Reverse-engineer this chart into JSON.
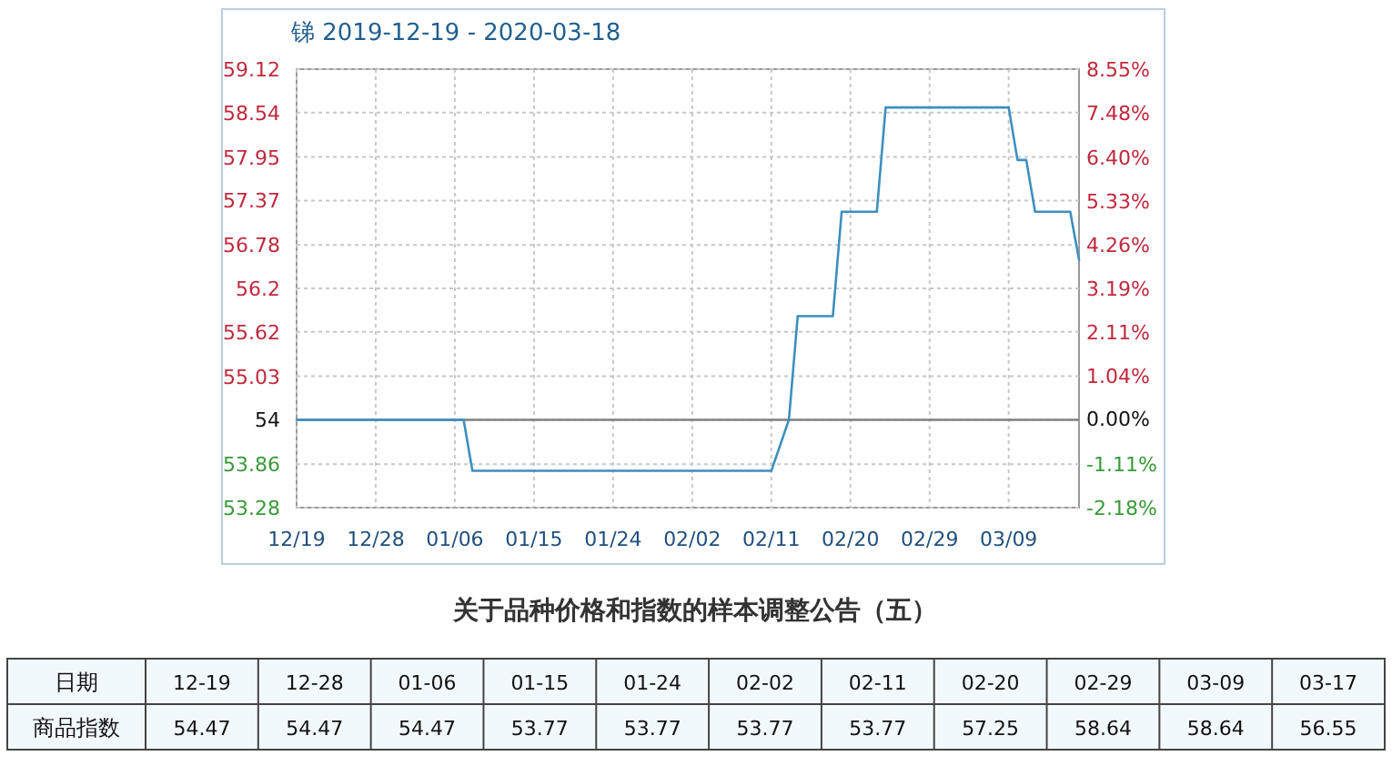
{
  "chart_data": [
    {
      "type": "line",
      "title": "锑 2019-12-19 - 2020-03-18",
      "x": [
        "2019-12-19",
        "2020-01-07",
        "2020-01-08",
        "2020-02-11",
        "2020-02-13",
        "2020-02-14",
        "2020-02-18",
        "2020-02-19",
        "2020-02-23",
        "2020-02-24",
        "2020-03-09",
        "2020-03-10",
        "2020-03-11",
        "2020-03-12",
        "2020-03-16",
        "2020-03-17"
      ],
      "series": [
        {
          "color": "#3d8fbf",
          "values": [
            54.45,
            54.45,
            53.77,
            53.77,
            54.45,
            55.83,
            55.83,
            57.22,
            57.22,
            58.61,
            58.61,
            57.91,
            57.91,
            57.22,
            57.22,
            56.58
          ]
        }
      ],
      "xlim": [
        "2019-12-19",
        "2020-03-17"
      ],
      "xticks": [
        {
          "value": "2019-12-19",
          "label": "12/19"
        },
        {
          "value": "2019-12-28",
          "label": "12/28"
        },
        {
          "value": "2020-01-06",
          "label": "01/06"
        },
        {
          "value": "2020-01-15",
          "label": "01/15"
        },
        {
          "value": "2020-01-24",
          "label": "01/24"
        },
        {
          "value": "2020-02-02",
          "label": "02/02"
        },
        {
          "value": "2020-02-11",
          "label": "02/11"
        },
        {
          "value": "2020-02-20",
          "label": "02/20"
        },
        {
          "value": "2020-02-29",
          "label": "02/29"
        },
        {
          "value": "2020-03-09",
          "label": "03/09"
        }
      ],
      "ylim": [
        53.28,
        59.12
      ],
      "yticks": [
        59.12,
        58.54,
        57.95,
        57.37,
        56.78,
        56.2,
        55.62,
        55.03,
        {
          "value": 54.45,
          "label": "54"
        },
        53.86,
        53.28
      ],
      "y2lim": [
        -2.18,
        8.55
      ],
      "y2ticks": [
        {
          "value": 8.55,
          "label": "8.55%"
        },
        {
          "value": 7.48,
          "label": "7.48%"
        },
        {
          "value": 6.4,
          "label": "6.40%"
        },
        {
          "value": 5.33,
          "label": "5.33%"
        },
        {
          "value": 4.26,
          "label": "4.26%"
        },
        {
          "value": 3.19,
          "label": "3.19%"
        },
        {
          "value": 2.11,
          "label": "2.11%"
        },
        {
          "value": 1.04,
          "label": "1.04%"
        },
        {
          "value": 0,
          "label": "0.00%"
        },
        {
          "value": -1.11,
          "label": "-1.11%"
        },
        {
          "value": -2.18,
          "label": "-2.18%"
        }
      ],
      "ref_lines": [
        {
          "axis": "y",
          "value": 54.45,
          "color": "#808080"
        }
      ],
      "grid": true,
      "marker": "none",
      "line_style": "solid"
    },
    {
      "type": "other",
      "title": "关于品种价格和指数的样本调整公告（五）",
      "xlabel": "日期",
      "ylabel": "商品指数",
      "categories": [
        "12-19",
        "12-28",
        "01-06",
        "01-15",
        "01-24",
        "02-02",
        "02-11",
        "02-20",
        "02-29",
        "03-09",
        "03-17"
      ],
      "values": [
        54.47,
        54.47,
        54.47,
        53.77,
        53.77,
        53.77,
        53.77,
        57.25,
        58.64,
        58.64,
        56.55
      ],
      "data_labels": true
    }
  ]
}
